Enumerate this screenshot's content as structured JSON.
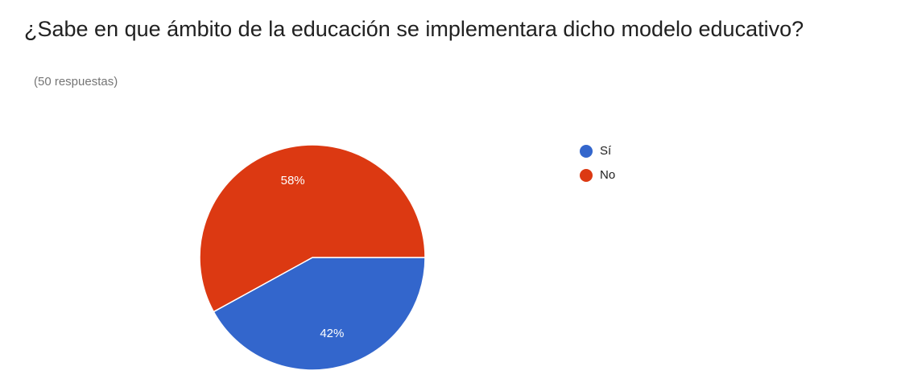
{
  "chart_data": {
    "type": "pie",
    "title": "¿Sabe en que ámbito de la educación se implementara dicho modelo educativo?",
    "subtitle": "(50 respuestas)",
    "categories": [
      "Sí",
      "No"
    ],
    "values": [
      42,
      58
    ],
    "value_labels": [
      "42%",
      "58%"
    ],
    "colors": [
      "#3366cc",
      "#dc3912"
    ],
    "legend": "right"
  }
}
